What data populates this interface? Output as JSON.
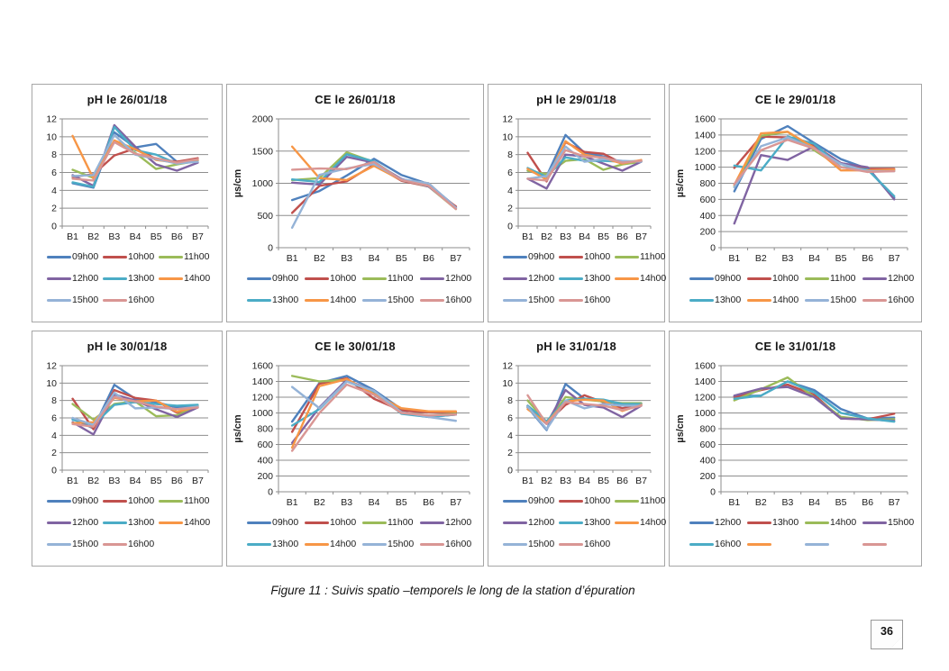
{
  "page": {
    "caption": "Figure 11 : Suivis spatio –temporels le long de la station d’épuration",
    "page_number": "36"
  },
  "chart_data": [
    {
      "type": "line",
      "title": "pH le 26/01/18",
      "xlabel": "",
      "ylabel": "",
      "ylim": [
        0,
        12
      ],
      "ytick_step": 2,
      "grid": true,
      "legend_position": "bottom",
      "legend_cols": 3,
      "categories": [
        "B1",
        "B2",
        "B3",
        "B4",
        "B5",
        "B6",
        "B7"
      ],
      "series": [
        {
          "name": "09h00",
          "color": "#4F81BD",
          "values": [
            4.8,
            4.3,
            10.5,
            8.8,
            9.2,
            7.2,
            7.4
          ]
        },
        {
          "name": "10h00",
          "color": "#C0504D",
          "values": [
            5.5,
            5.8,
            7.9,
            8.7,
            7.5,
            7.2,
            7.6
          ]
        },
        {
          "name": "11h00",
          "color": "#9BBB59",
          "values": [
            6.3,
            5.4,
            9.5,
            8.2,
            6.4,
            6.9,
            7.3
          ]
        },
        {
          "name": "12h00",
          "color": "#8064A2",
          "values": [
            5.7,
            4.5,
            11.3,
            8.9,
            6.9,
            6.2,
            7.1
          ]
        },
        {
          "name": "13h00",
          "color": "#4BACC6",
          "values": [
            4.9,
            4.4,
            11.1,
            8.5,
            8.0,
            7.0,
            7.3
          ]
        },
        {
          "name": "14h00",
          "color": "#F79646",
          "values": [
            10.1,
            5.3,
            9.6,
            8.6,
            7.4,
            7.1,
            7.4
          ]
        },
        {
          "name": "15h00",
          "color": "#95B3D7",
          "values": [
            5.6,
            5.7,
            10.2,
            8.0,
            7.5,
            7.0,
            7.2
          ]
        },
        {
          "name": "16h00",
          "color": "#D99694",
          "values": [
            5.3,
            5.1,
            9.4,
            8.1,
            7.6,
            7.1,
            7.5
          ]
        }
      ]
    },
    {
      "type": "line",
      "title": "CE le 26/01/18",
      "xlabel": "",
      "ylabel": "µs/cm",
      "ylim": [
        0,
        2000
      ],
      "ytick_step": 500,
      "grid": true,
      "legend_position": "bottom",
      "legend_cols": 4,
      "categories": [
        "B1",
        "B2",
        "B3",
        "B4",
        "B5",
        "B6",
        "B7"
      ],
      "series": [
        {
          "name": "09h00",
          "color": "#4F81BD",
          "values": [
            740,
            880,
            1120,
            1380,
            1130,
            990,
            630
          ]
        },
        {
          "name": "10h00",
          "color": "#C0504D",
          "values": [
            540,
            960,
            1030,
            1290,
            1040,
            950,
            640
          ]
        },
        {
          "name": "11h00",
          "color": "#9BBB59",
          "values": [
            1050,
            1080,
            1480,
            1330,
            1060,
            950,
            600
          ]
        },
        {
          "name": "12h00",
          "color": "#8064A2",
          "values": [
            1010,
            980,
            1410,
            1320,
            1070,
            950,
            620
          ]
        },
        {
          "name": "13h00",
          "color": "#4BACC6",
          "values": [
            1060,
            1020,
            1450,
            1340,
            1050,
            960,
            610
          ]
        },
        {
          "name": "14h00",
          "color": "#F79646",
          "values": [
            1570,
            1080,
            1050,
            1270,
            1050,
            1000,
            610
          ]
        },
        {
          "name": "15h00",
          "color": "#95B3D7",
          "values": [
            310,
            1130,
            1230,
            1300,
            1060,
            1000,
            620
          ]
        },
        {
          "name": "16h00",
          "color": "#D99694",
          "values": [
            1210,
            1230,
            1220,
            1330,
            1050,
            960,
            600
          ]
        }
      ]
    },
    {
      "type": "line",
      "title": "pH le 29/01/18",
      "xlabel": "",
      "ylabel": "",
      "ylim": [
        0,
        12
      ],
      "ytick_step": 2,
      "grid": true,
      "legend_position": "bottom",
      "legend_cols": 3,
      "categories": [
        "B1",
        "B2",
        "B3",
        "B4",
        "B5",
        "B6",
        "B7"
      ],
      "series": [
        {
          "name": "09h00",
          "color": "#4F81BD",
          "values": [
            6.2,
            5.6,
            10.2,
            8.2,
            7.8,
            7.0,
            7.2
          ]
        },
        {
          "name": "10h00",
          "color": "#C0504D",
          "values": [
            8.2,
            5.0,
            9.4,
            8.3,
            8.1,
            7.0,
            7.3
          ]
        },
        {
          "name": "11h00",
          "color": "#9BBB59",
          "values": [
            6.2,
            5.8,
            7.3,
            7.5,
            6.3,
            6.9,
            7.2
          ]
        },
        {
          "name": "12h00",
          "color": "#8064A2",
          "values": [
            5.3,
            4.2,
            8.0,
            7.8,
            7.0,
            6.2,
            7.2
          ]
        },
        {
          "name": "13h00",
          "color": "#4BACC6",
          "values": [
            6.5,
            5.5,
            7.7,
            7.3,
            7.3,
            7.2,
            7.3
          ]
        },
        {
          "name": "14h00",
          "color": "#F79646",
          "values": [
            6.4,
            5.2,
            9.5,
            8.0,
            7.6,
            7.0,
            7.4
          ]
        },
        {
          "name": "15h00",
          "color": "#95B3D7",
          "values": [
            5.3,
            5.6,
            8.9,
            7.2,
            7.5,
            7.3,
            7.2
          ]
        },
        {
          "name": "16h00",
          "color": "#D99694",
          "values": [
            5.3,
            5.1,
            8.5,
            7.8,
            7.7,
            7.1,
            7.3
          ]
        }
      ]
    },
    {
      "type": "line",
      "title": "CE le 29/01/18",
      "xlabel": "",
      "ylabel": "µs/cm",
      "ylim": [
        0,
        1600
      ],
      "ytick_step": 200,
      "grid": true,
      "legend_position": "bottom",
      "legend_cols": 4,
      "categories": [
        "B1",
        "B2",
        "B3",
        "B4",
        "B5",
        "B6",
        "B7"
      ],
      "series": [
        {
          "name": "09h00",
          "color": "#4F81BD",
          "values": [
            700,
            1350,
            1510,
            1300,
            1100,
            980,
            620
          ]
        },
        {
          "name": "10h00",
          "color": "#C0504D",
          "values": [
            990,
            1380,
            1370,
            1270,
            1050,
            980,
            980
          ]
        },
        {
          "name": "11h00",
          "color": "#9BBB59",
          "values": [
            760,
            1390,
            1440,
            1210,
            1000,
            960,
            960
          ]
        },
        {
          "name": "12h00",
          "color": "#8064A2",
          "values": [
            300,
            1150,
            1090,
            1260,
            1050,
            1000,
            600
          ]
        },
        {
          "name": "13h00",
          "color": "#4BACC6",
          "values": [
            1020,
            960,
            1380,
            1290,
            1000,
            970,
            640
          ]
        },
        {
          "name": "14h00",
          "color": "#F79646",
          "values": [
            780,
            1420,
            1440,
            1240,
            960,
            960,
            970
          ]
        },
        {
          "name": "15h00",
          "color": "#95B3D7",
          "values": [
            750,
            1260,
            1370,
            1230,
            1040,
            950,
            950
          ]
        },
        {
          "name": "16h00",
          "color": "#D99694",
          "values": [
            790,
            1210,
            1340,
            1230,
            1000,
            940,
            950
          ]
        }
      ]
    },
    {
      "type": "line",
      "title": "pH le 30/01/18",
      "xlabel": "",
      "ylabel": "",
      "ylim": [
        0,
        12
      ],
      "ytick_step": 2,
      "grid": true,
      "legend_position": "bottom",
      "legend_cols": 3,
      "categories": [
        "B1",
        "B2",
        "B3",
        "B4",
        "B5",
        "B6",
        "B7"
      ],
      "series": [
        {
          "name": "09h00",
          "color": "#4F81BD",
          "values": [
            5.9,
            4.8,
            9.8,
            8.2,
            7.8,
            7.2,
            7.3
          ]
        },
        {
          "name": "10h00",
          "color": "#C0504D",
          "values": [
            8.2,
            4.7,
            9.2,
            8.3,
            8.0,
            6.6,
            7.2
          ]
        },
        {
          "name": "11h00",
          "color": "#9BBB59",
          "values": [
            7.6,
            5.8,
            7.6,
            7.9,
            6.2,
            6.3,
            7.4
          ]
        },
        {
          "name": "12h00",
          "color": "#8064A2",
          "values": [
            5.5,
            4.1,
            8.7,
            8.0,
            7.0,
            6.1,
            7.2
          ]
        },
        {
          "name": "13h00",
          "color": "#4BACC6",
          "values": [
            5.8,
            5.2,
            7.5,
            7.8,
            7.6,
            7.4,
            7.5
          ]
        },
        {
          "name": "14h00",
          "color": "#F79646",
          "values": [
            5.4,
            5.5,
            8.3,
            7.9,
            8.0,
            6.7,
            7.3
          ]
        },
        {
          "name": "15h00",
          "color": "#95B3D7",
          "values": [
            6.0,
            5.2,
            8.9,
            7.1,
            7.2,
            7.0,
            7.3
          ]
        },
        {
          "name": "16h00",
          "color": "#D99694",
          "values": [
            5.3,
            5.0,
            8.4,
            7.9,
            7.3,
            7.0,
            7.2
          ]
        }
      ]
    },
    {
      "type": "line",
      "title": "CE le 30/01/18",
      "xlabel": "",
      "ylabel": "µs/cm",
      "ylim": [
        0,
        1600
      ],
      "ytick_step": 200,
      "grid": true,
      "legend_position": "bottom",
      "legend_cols": 4,
      "categories": [
        "B1",
        "B2",
        "B3",
        "B4",
        "B5",
        "B6",
        "B7"
      ],
      "series": [
        {
          "name": "09h00",
          "color": "#4F81BD",
          "values": [
            890,
            1380,
            1470,
            1290,
            1050,
            1010,
            1000
          ]
        },
        {
          "name": "10h00",
          "color": "#C0504D",
          "values": [
            760,
            1370,
            1440,
            1180,
            1030,
            1010,
            1010
          ]
        },
        {
          "name": "11h00",
          "color": "#9BBB59",
          "values": [
            1470,
            1400,
            1420,
            1260,
            1000,
            970,
            990
          ]
        },
        {
          "name": "12h00",
          "color": "#8064A2",
          "values": [
            620,
            1070,
            1420,
            1270,
            1000,
            950,
            980
          ]
        },
        {
          "name": "13h00",
          "color": "#4BACC6",
          "values": [
            840,
            1050,
            1400,
            1270,
            990,
            950,
            980
          ]
        },
        {
          "name": "14h00",
          "color": "#F79646",
          "values": [
            560,
            1340,
            1430,
            1240,
            1060,
            1020,
            1020
          ]
        },
        {
          "name": "15h00",
          "color": "#95B3D7",
          "values": [
            1330,
            1060,
            1400,
            1280,
            1010,
            950,
            900
          ]
        },
        {
          "name": "16h00",
          "color": "#D99694",
          "values": [
            520,
            1000,
            1360,
            1230,
            1000,
            970,
            980
          ]
        }
      ]
    },
    {
      "type": "line",
      "title": "pH le 31/01/18",
      "xlabel": "",
      "ylabel": "",
      "ylim": [
        0,
        12
      ],
      "ytick_step": 2,
      "grid": true,
      "legend_position": "bottom",
      "legend_cols": 3,
      "categories": [
        "B1",
        "B2",
        "B3",
        "B4",
        "B5",
        "B6",
        "B7"
      ],
      "series": [
        {
          "name": "09h00",
          "color": "#4F81BD",
          "values": [
            7.2,
            4.6,
            9.9,
            8.2,
            7.9,
            7.6,
            7.6
          ]
        },
        {
          "name": "10h00",
          "color": "#C0504D",
          "values": [
            7.4,
            5.4,
            7.5,
            8.6,
            7.8,
            7.1,
            7.6
          ]
        },
        {
          "name": "11h00",
          "color": "#9BBB59",
          "values": [
            8.0,
            5.5,
            8.4,
            8.1,
            7.9,
            7.7,
            7.7
          ]
        },
        {
          "name": "12h00",
          "color": "#8064A2",
          "values": [
            7.3,
            5.3,
            9.2,
            7.5,
            7.2,
            6.1,
            7.4
          ]
        },
        {
          "name": "13h00",
          "color": "#4BACC6",
          "values": [
            7.4,
            5.6,
            8.0,
            8.2,
            8.1,
            7.6,
            7.6
          ]
        },
        {
          "name": "14h00",
          "color": "#F79646",
          "values": [
            7.0,
            5.4,
            7.9,
            8.1,
            8.0,
            6.8,
            7.5
          ]
        },
        {
          "name": "15h00",
          "color": "#95B3D7",
          "values": [
            7.3,
            4.7,
            8.0,
            7.1,
            7.6,
            7.4,
            7.4
          ]
        },
        {
          "name": "16h00",
          "color": "#D99694",
          "values": [
            8.6,
            5.3,
            7.8,
            7.6,
            7.4,
            6.9,
            7.4
          ]
        }
      ]
    },
    {
      "type": "line",
      "title": "CE le 31/01/18",
      "xlabel": "",
      "ylabel": "µs/cm",
      "ylim": [
        0,
        1600
      ],
      "ytick_step": 200,
      "grid": true,
      "legend_position": "bottom",
      "legend_cols": 4,
      "categories": [
        "B1",
        "B2",
        "B3",
        "B4",
        "B5",
        "B6",
        "B7"
      ],
      "series": [
        {
          "name": "12h00",
          "color": "#4F81BD",
          "values": [
            1210,
            1220,
            1400,
            1290,
            1050,
            930,
            940
          ]
        },
        {
          "name": "13h00",
          "color": "#C0504D",
          "values": [
            1200,
            1290,
            1360,
            1230,
            930,
            920,
            990
          ]
        },
        {
          "name": "14h00",
          "color": "#9BBB59",
          "values": [
            1160,
            1300,
            1450,
            1200,
            950,
            910,
            920
          ]
        },
        {
          "name": "15h00",
          "color": "#8064A2",
          "values": [
            1220,
            1310,
            1330,
            1200,
            930,
            920,
            900
          ]
        },
        {
          "name": "16h00",
          "color": "#4BACC6",
          "values": [
            1180,
            1220,
            1400,
            1260,
            1000,
            930,
            890
          ]
        }
      ],
      "extra_legend": [
        {
          "name": "",
          "color": "#F79646"
        },
        {
          "name": "",
          "color": "#95B3D7"
        },
        {
          "name": "",
          "color": "#D99694"
        }
      ]
    }
  ]
}
